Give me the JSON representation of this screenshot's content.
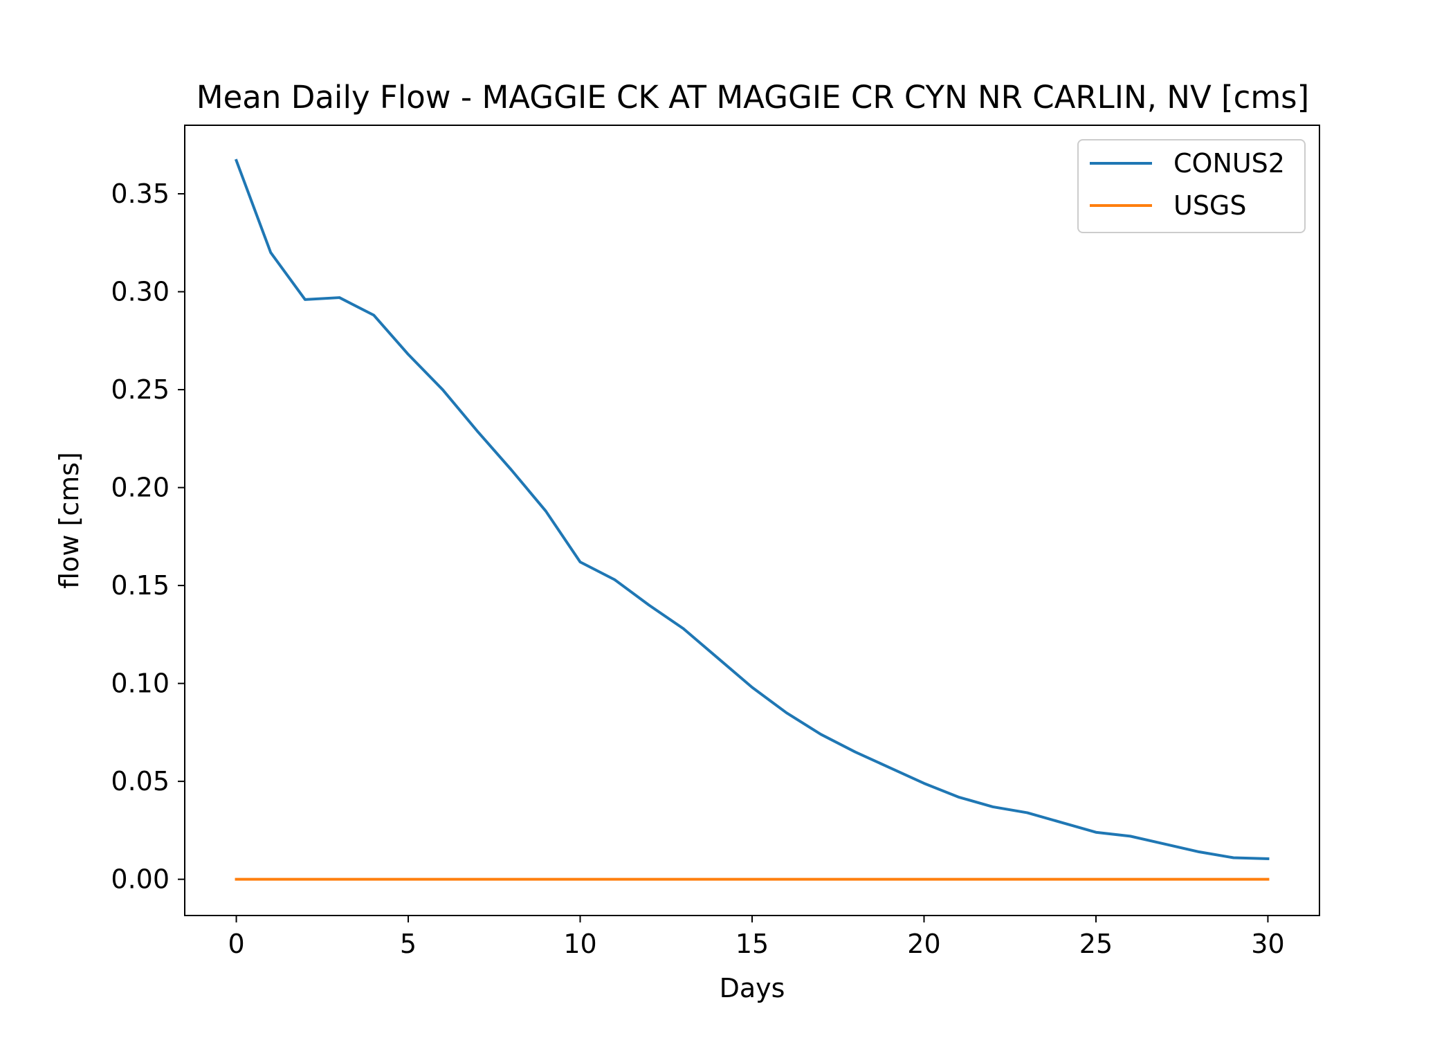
{
  "chart_data": {
    "type": "line",
    "title": "Mean Daily Flow - MAGGIE CK AT MAGGIE CR CYN NR CARLIN, NV [cms]",
    "xlabel": "Days",
    "ylabel": "flow [cms]",
    "xlim": [
      -1.5,
      31.5
    ],
    "ylim": [
      -0.0185,
      0.385
    ],
    "xticks": [
      0,
      5,
      10,
      15,
      20,
      25,
      30
    ],
    "xtick_labels": [
      "0",
      "5",
      "10",
      "15",
      "20",
      "25",
      "30"
    ],
    "yticks": [
      0.0,
      0.05,
      0.1,
      0.15,
      0.2,
      0.25,
      0.3,
      0.35
    ],
    "ytick_labels": [
      "0.00",
      "0.05",
      "0.10",
      "0.15",
      "0.20",
      "0.25",
      "0.30",
      "0.35"
    ],
    "grid": false,
    "legend_position": "top-right",
    "x": [
      0,
      1,
      2,
      3,
      4,
      5,
      6,
      7,
      8,
      9,
      10,
      11,
      12,
      13,
      14,
      15,
      16,
      17,
      18,
      19,
      20,
      21,
      22,
      23,
      24,
      25,
      26,
      27,
      28,
      29,
      30
    ],
    "series": [
      {
        "name": "CONUS2",
        "color": "#1f77b4",
        "values": [
          0.367,
          0.32,
          0.296,
          0.297,
          0.288,
          0.268,
          0.25,
          0.229,
          0.209,
          0.188,
          0.162,
          0.153,
          0.14,
          0.128,
          0.113,
          0.098,
          0.085,
          0.074,
          0.065,
          0.057,
          0.049,
          0.042,
          0.037,
          0.034,
          0.029,
          0.024,
          0.022,
          0.018,
          0.014,
          0.011,
          0.0105
        ]
      },
      {
        "name": "USGS",
        "color": "#ff7f0e",
        "values": [
          0,
          0,
          0,
          0,
          0,
          0,
          0,
          0,
          0,
          0,
          0,
          0,
          0,
          0,
          0,
          0,
          0,
          0,
          0,
          0,
          0,
          0,
          0,
          0,
          0,
          0,
          0,
          0,
          0,
          0,
          0
        ]
      }
    ]
  }
}
